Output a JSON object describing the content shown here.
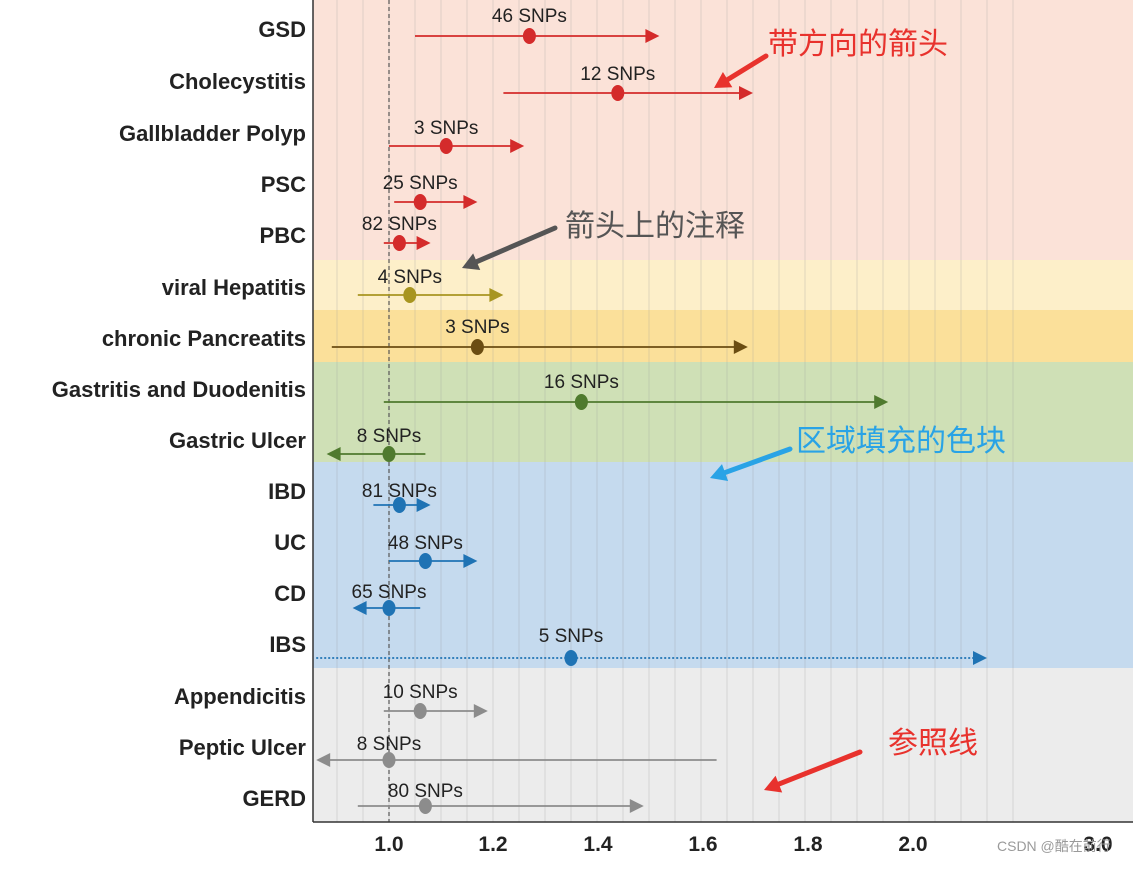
{
  "chart_data": {
    "type": "forest",
    "xaxis": {
      "ticks": [
        "1.0",
        "1.2",
        "1.4",
        "1.6",
        "1.8",
        "2.0",
        "3.0"
      ],
      "min": 0.86,
      "max": 2.2,
      "reference_line": 1.0
    },
    "grid": true,
    "bands": [
      {
        "color": "#fbe2d8"
      },
      {
        "color": "#fdefc9"
      },
      {
        "color": "#fbe09a"
      },
      {
        "color": "#cfe0b6"
      },
      {
        "color": "#c5daee"
      },
      {
        "color": "#ececec"
      }
    ],
    "rows": [
      {
        "label": "GSD",
        "snp_label": "46 SNPs",
        "estimate": 1.27,
        "lower": 1.05,
        "upper": 1.52,
        "arrow": "right",
        "color": "#d42b2b"
      },
      {
        "label": "Cholecystitis",
        "snp_label": "12 SNPs",
        "estimate": 1.44,
        "lower": 1.22,
        "upper": 1.7,
        "arrow": "right",
        "color": "#d42b2b"
      },
      {
        "label": "Gallbladder Polyp",
        "snp_label": "3 SNPs",
        "estimate": 1.11,
        "lower": 1.0,
        "upper": 1.26,
        "arrow": "right",
        "color": "#d42b2b"
      },
      {
        "label": "PSC",
        "snp_label": "25 SNPs",
        "estimate": 1.06,
        "lower": 1.01,
        "upper": 1.17,
        "arrow": "right",
        "color": "#d42b2b"
      },
      {
        "label": "PBC",
        "snp_label": "82 SNPs",
        "estimate": 1.02,
        "lower": 0.99,
        "upper": 1.08,
        "arrow": "right",
        "color": "#d42b2b"
      },
      {
        "label": "viral Hepatitis",
        "snp_label": "4 SNPs",
        "estimate": 1.04,
        "lower": 0.94,
        "upper": 1.22,
        "arrow": "right",
        "color": "#a89520"
      },
      {
        "label": "chronic Pancreatits",
        "snp_label": "3 SNPs",
        "estimate": 1.17,
        "lower": 0.89,
        "upper": 1.69,
        "arrow": "right",
        "color": "#6b4d12"
      },
      {
        "label": "Gastritis and Duodenitis",
        "snp_label": "16 SNPs",
        "estimate": 1.37,
        "lower": 0.99,
        "upper": 1.96,
        "arrow": "right",
        "color": "#4f7a2e"
      },
      {
        "label": "Gastric Ulcer",
        "snp_label": "8 SNPs",
        "estimate": 1.0,
        "lower": 0.88,
        "upper": 1.07,
        "arrow": "left",
        "color": "#4f7a2e"
      },
      {
        "label": "IBD",
        "snp_label": "81 SNPs",
        "estimate": 1.02,
        "lower": 0.97,
        "upper": 1.08,
        "arrow": "right",
        "color": "#1f73b4"
      },
      {
        "label": "UC",
        "snp_label": "48 SNPs",
        "estimate": 1.07,
        "lower": 1.0,
        "upper": 1.17,
        "arrow": "right",
        "color": "#1f73b4"
      },
      {
        "label": "CD",
        "snp_label": "65 SNPs",
        "estimate": 1.0,
        "lower": 0.93,
        "upper": 1.06,
        "arrow": "left",
        "color": "#1f73b4"
      },
      {
        "label": "IBS",
        "snp_label": "5 SNPs",
        "estimate": 1.35,
        "lower": 0.86,
        "upper": 2.15,
        "arrow": "right",
        "color": "#1f73b4",
        "dotted": true
      },
      {
        "label": "Appendicitis",
        "snp_label": "10 SNPs",
        "estimate": 1.06,
        "lower": 0.99,
        "upper": 1.19,
        "arrow": "right",
        "color": "#8c8c8c"
      },
      {
        "label": "Peptic Ulcer",
        "snp_label": "8 SNPs",
        "estimate": 1.0,
        "lower": 0.86,
        "upper": 1.63,
        "arrow": "left",
        "color": "#8c8c8c"
      },
      {
        "label": "GERD",
        "snp_label": "80 SNPs",
        "estimate": 1.07,
        "lower": 0.94,
        "upper": 1.49,
        "arrow": "right",
        "color": "#8c8c8c"
      }
    ],
    "annotations": [
      {
        "text": "带方向的箭头",
        "color": "#e8322d"
      },
      {
        "text": "箭头上的注释",
        "color": "#555555"
      },
      {
        "text": "区域填充的色块",
        "color": "#29a3e6"
      },
      {
        "text": "参照线",
        "color": "#e8322d"
      }
    ]
  },
  "watermark": "CSDN @酷在前行"
}
